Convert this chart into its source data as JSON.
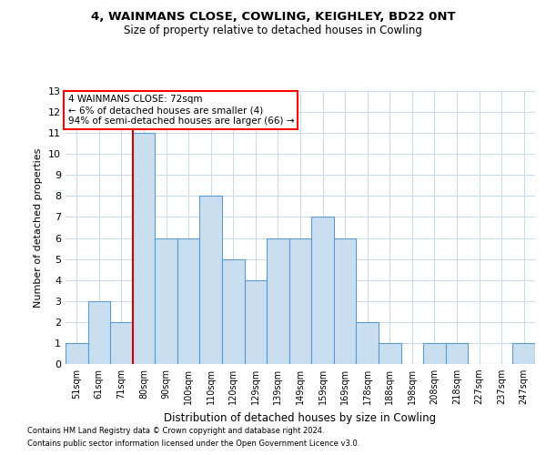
{
  "title1": "4, WAINMANS CLOSE, COWLING, KEIGHLEY, BD22 0NT",
  "title2": "Size of property relative to detached houses in Cowling",
  "xlabel": "Distribution of detached houses by size in Cowling",
  "ylabel": "Number of detached properties",
  "categories": [
    "51sqm",
    "61sqm",
    "71sqm",
    "80sqm",
    "90sqm",
    "100sqm",
    "110sqm",
    "120sqm",
    "129sqm",
    "139sqm",
    "149sqm",
    "159sqm",
    "169sqm",
    "178sqm",
    "188sqm",
    "198sqm",
    "208sqm",
    "218sqm",
    "227sqm",
    "237sqm",
    "247sqm"
  ],
  "values": [
    1,
    3,
    2,
    11,
    6,
    6,
    8,
    5,
    4,
    6,
    6,
    7,
    6,
    2,
    1,
    0,
    1,
    1,
    0,
    0,
    1
  ],
  "bar_color": "#c9dff0",
  "bar_edge_color": "#5b9bd5",
  "highlight_index": 2,
  "highlight_line_color": "#cc0000",
  "ylim": [
    0,
    13
  ],
  "yticks": [
    0,
    1,
    2,
    3,
    4,
    5,
    6,
    7,
    8,
    9,
    10,
    11,
    12,
    13
  ],
  "annotation_text": "4 WAINMANS CLOSE: 72sqm\n← 6% of detached houses are smaller (4)\n94% of semi-detached houses are larger (66) →",
  "footer1": "Contains HM Land Registry data © Crown copyright and database right 2024.",
  "footer2": "Contains public sector information licensed under the Open Government Licence v3.0.",
  "bg_color": "#ffffff",
  "grid_color": "#c8d8e8"
}
